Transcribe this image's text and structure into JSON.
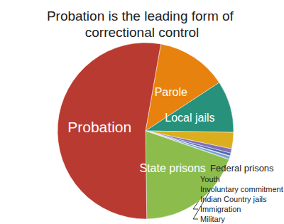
{
  "chart_data": {
    "type": "pie",
    "title": "Probation is the leading form of correctional control",
    "categories": [
      "Parole",
      "Local jails",
      "Federal prisons",
      "Youth",
      "Involuntary commitment",
      "Indian Country jails",
      "Immigration",
      "Military",
      "State prisons",
      "Probation"
    ],
    "values": [
      13,
      9.5,
      3,
      0.8,
      0.5,
      0.1,
      0.5,
      0.1,
      19.5,
      53
    ],
    "colors": [
      "#e8820e",
      "#27917c",
      "#dcae1d",
      "#7f6fb8",
      "#4f66b0",
      "#9a9a9a",
      "#6f9fd6",
      "#5a5a5a",
      "#8cbd4c",
      "#b93a30"
    ]
  }
}
